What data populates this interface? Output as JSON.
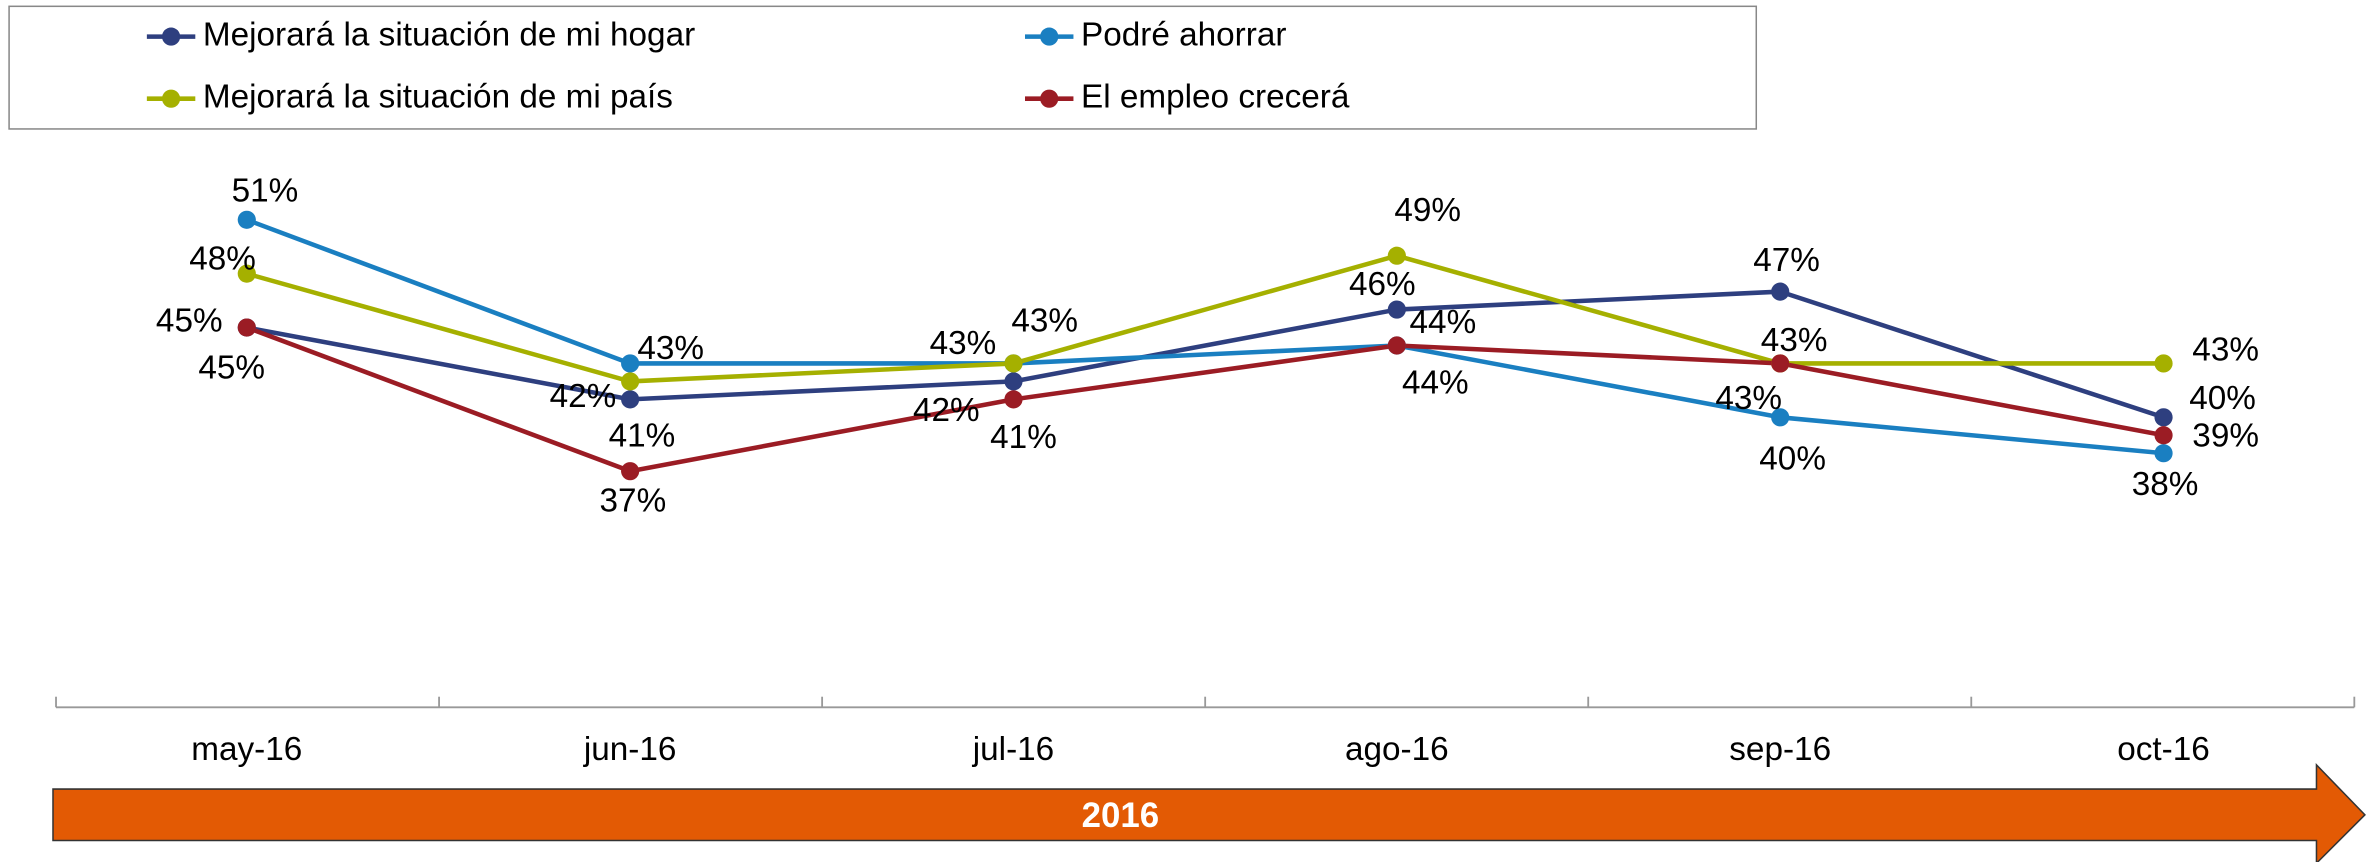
{
  "chart_data": {
    "type": "line",
    "categories": [
      "may-16",
      "jun-16",
      "jul-16",
      "ago-16",
      "sep-16",
      "oct-16"
    ],
    "series": [
      {
        "name": "Mejorará la situación de mi hogar",
        "color": "#2e3f7f",
        "values": [
          45,
          41,
          42,
          46,
          47,
          40
        ],
        "value_labels": [
          "45%",
          "41%",
          "42%",
          "46%",
          "47%",
          "40%"
        ]
      },
      {
        "name": "Podré ahorrar",
        "color": "#1a7fc1",
        "values": [
          51,
          43,
          43,
          44,
          40,
          38
        ],
        "value_labels": [
          "51%",
          "43%",
          "43%",
          "44%",
          "40%",
          "38%"
        ]
      },
      {
        "name": "Mejorará la situación de mi país",
        "color": "#a5b000",
        "values": [
          48,
          42,
          43,
          49,
          43,
          43
        ],
        "value_labels": [
          "48%",
          "42%",
          "43%",
          "49%",
          "43%",
          "43%"
        ]
      },
      {
        "name": "El empleo crecerá",
        "color": "#9b1c24",
        "values": [
          45,
          37,
          41,
          44,
          43,
          39
        ],
        "value_labels": [
          "45%",
          "37%",
          "41%",
          "44%",
          "43%",
          "39%"
        ]
      }
    ],
    "period_label": "2016",
    "period_color": "#e35a04"
  }
}
